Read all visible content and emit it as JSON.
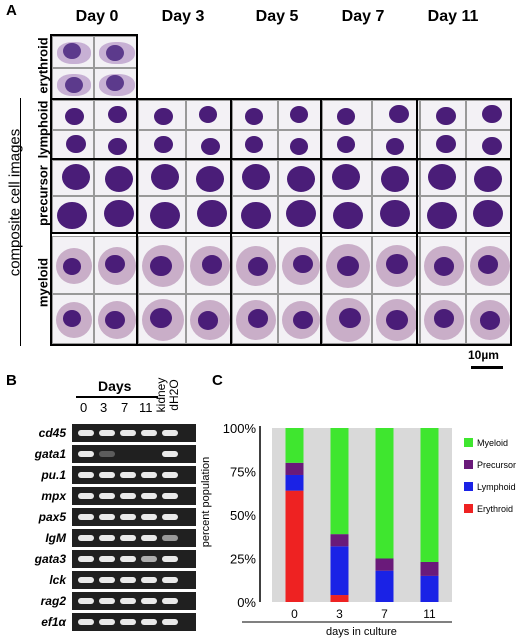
{
  "panels": {
    "a": "A",
    "b": "B",
    "c": "C"
  },
  "panel_a": {
    "days": [
      "Day 0",
      "Day 3",
      "Day 5",
      "Day 7",
      "Day 11"
    ],
    "ylabel": "composite cell images",
    "rows": [
      "erythroid",
      "lymphoid",
      "precursor",
      "myeloid"
    ],
    "scale_bar": "10µm"
  },
  "panel_b": {
    "days_header": "Days",
    "days": [
      "0",
      "3",
      "7",
      "11"
    ],
    "extra_lanes": [
      "kidney",
      "dH2O"
    ],
    "genes": [
      "cd45",
      "gata1",
      "pu.1",
      "mpx",
      "pax5",
      "IgM",
      "gata3",
      "lck",
      "rag2",
      "ef1α"
    ]
  },
  "chart_data": {
    "type": "bar",
    "stacked": true,
    "categories": [
      "0",
      "3",
      "7",
      "11"
    ],
    "xlabel": "days in culture",
    "ylabel": "percent population",
    "yticks": [
      "0%",
      "25%",
      "50%",
      "75%",
      "100%"
    ],
    "ylim": [
      0,
      100
    ],
    "legend_position": "right",
    "series": [
      {
        "name": "Erythroid",
        "color": "#ee2222",
        "values": [
          64,
          4,
          0,
          0
        ]
      },
      {
        "name": "Lymphoid",
        "color": "#1a22e6",
        "values": [
          9,
          28,
          18,
          15
        ]
      },
      {
        "name": "Precursor",
        "color": "#6a1a7a",
        "values": [
          7,
          7,
          7,
          8
        ]
      },
      {
        "name": "Myeloid",
        "color": "#3fe62f",
        "values": [
          20,
          61,
          75,
          77
        ]
      }
    ]
  }
}
